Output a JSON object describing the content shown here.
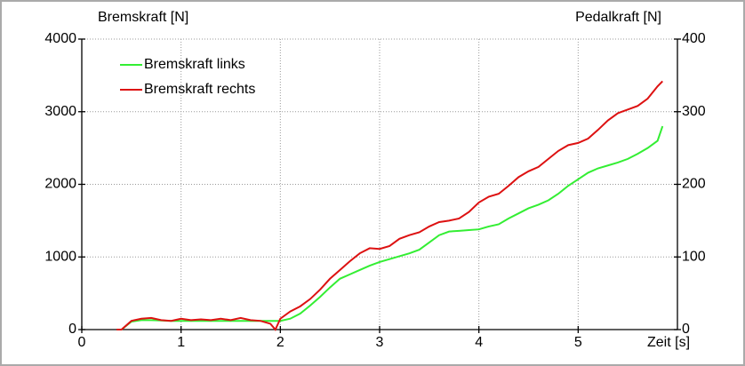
{
  "chart_data": {
    "type": "line",
    "y_label": "Bremskraft [N]",
    "y2_label": "Pedalkraft [N]",
    "x_label": "Zeit [s]",
    "x": [
      0.35,
      0.4,
      0.5,
      0.6,
      0.7,
      0.8,
      0.9,
      1.0,
      1.1,
      1.2,
      1.3,
      1.4,
      1.5,
      1.6,
      1.7,
      1.8,
      1.9,
      1.95,
      2.0,
      2.1,
      2.2,
      2.3,
      2.4,
      2.5,
      2.6,
      2.7,
      2.8,
      2.9,
      3.0,
      3.1,
      3.2,
      3.3,
      3.4,
      3.5,
      3.6,
      3.7,
      3.8,
      3.9,
      4.0,
      4.1,
      4.2,
      4.3,
      4.4,
      4.5,
      4.6,
      4.7,
      4.8,
      4.9,
      5.0,
      5.1,
      5.2,
      5.3,
      5.4,
      5.5,
      5.6,
      5.7,
      5.8,
      5.85
    ],
    "series": [
      {
        "name": "Bremskraft links",
        "color": "#33ee33",
        "values": [
          0,
          0,
          110,
          130,
          130,
          125,
          120,
          120,
          120,
          120,
          120,
          120,
          120,
          120,
          120,
          120,
          120,
          120,
          120,
          150,
          220,
          330,
          450,
          580,
          700,
          760,
          820,
          880,
          930,
          970,
          1010,
          1050,
          1100,
          1200,
          1300,
          1350,
          1360,
          1370,
          1380,
          1420,
          1450,
          1530,
          1600,
          1670,
          1720,
          1780,
          1870,
          1980,
          2070,
          2160,
          2220,
          2260,
          2300,
          2350,
          2420,
          2500,
          2600,
          2800
        ]
      },
      {
        "name": "Bremskraft rechts",
        "color": "#dd1111",
        "values": [
          0,
          0,
          120,
          150,
          160,
          130,
          120,
          150,
          130,
          140,
          130,
          150,
          130,
          160,
          130,
          120,
          80,
          0,
          150,
          250,
          320,
          420,
          550,
          700,
          820,
          940,
          1050,
          1120,
          1110,
          1150,
          1250,
          1300,
          1340,
          1420,
          1480,
          1500,
          1530,
          1620,
          1750,
          1830,
          1870,
          1980,
          2100,
          2180,
          2240,
          2350,
          2460,
          2540,
          2570,
          2630,
          2750,
          2880,
          2980,
          3030,
          3080,
          3180,
          3350,
          3420
        ]
      }
    ],
    "xlim": [
      0,
      6
    ],
    "xticks": [
      0,
      1,
      2,
      3,
      4,
      5
    ],
    "ylim": [
      0,
      4000
    ],
    "yticks": [
      0,
      1000,
      2000,
      3000,
      4000
    ],
    "y2lim": [
      0,
      400
    ],
    "y2ticks": [
      0,
      100,
      200,
      300,
      400
    ],
    "grid": true,
    "legend": "upper left"
  }
}
